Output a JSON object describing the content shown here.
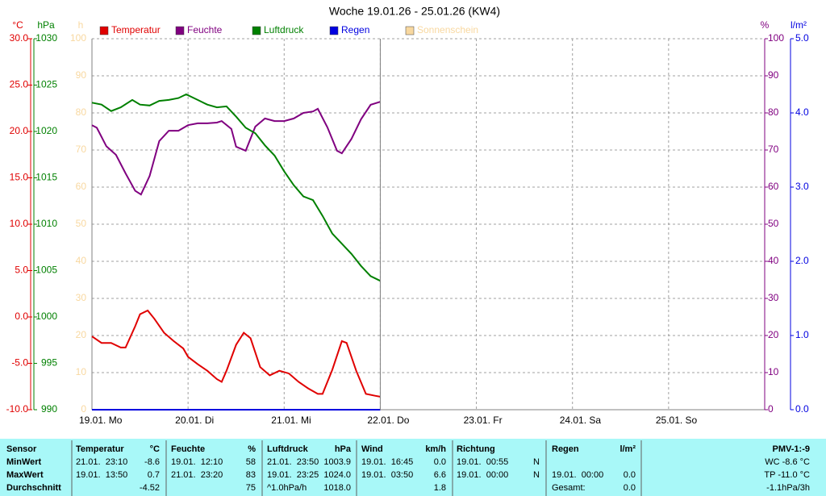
{
  "chart_data": {
    "type": "line",
    "title": "Woche 19.01.26 - 25.01.26 (KW4)",
    "xlim": [
      0,
      7
    ],
    "xticks": [
      {
        "value": 0,
        "label": "19.01. Mo"
      },
      {
        "value": 1,
        "label": "20.01. Di"
      },
      {
        "value": 2,
        "label": "21.01. Mi"
      },
      {
        "value": 3,
        "label": "22.01. Do"
      },
      {
        "value": 4,
        "label": "23.01. Fr"
      },
      {
        "value": 5,
        "label": "24.01. Sa"
      },
      {
        "value": 6,
        "label": "25.01. So"
      }
    ],
    "grid": true,
    "axes": [
      {
        "label": "°C",
        "color": "#e00000",
        "lim": [
          -10,
          30
        ],
        "ticks": [
          {
            "value": -10,
            "label": "-10.0"
          },
          {
            "value": -5,
            "label": "-5.0"
          },
          {
            "value": 0,
            "label": "0.0"
          },
          {
            "value": 5,
            "label": "5.0"
          },
          {
            "value": 10,
            "label": "10.0"
          },
          {
            "value": 15,
            "label": "15.0"
          },
          {
            "value": 20,
            "label": "20.0"
          },
          {
            "value": 25,
            "label": "25.0"
          },
          {
            "value": 30,
            "label": "30.0"
          }
        ]
      },
      {
        "label": "hPa",
        "color": "#008000",
        "lim": [
          990,
          1030
        ],
        "ticks": [
          990,
          995,
          1000,
          1005,
          1010,
          1015,
          1020,
          1025,
          1030
        ]
      },
      {
        "label": "h",
        "color": "#f8d8a0",
        "lim": [
          0,
          100
        ],
        "ticks": [
          0,
          10,
          20,
          30,
          40,
          50,
          60,
          70,
          80,
          90,
          100
        ]
      },
      {
        "label": "%",
        "color": "#800080",
        "lim": [
          0,
          100
        ],
        "ticks": [
          0,
          10,
          20,
          30,
          40,
          50,
          60,
          70,
          80,
          90,
          100
        ]
      },
      {
        "label": "l/m²",
        "color": "#0000e0",
        "lim": [
          0,
          5
        ],
        "ticks": [
          {
            "value": 0,
            "label": "0.0"
          },
          {
            "value": 1,
            "label": "1.0"
          },
          {
            "value": 2,
            "label": "2.0"
          },
          {
            "value": 3,
            "label": "3.0"
          },
          {
            "value": 4,
            "label": "4.0"
          },
          {
            "value": 5,
            "label": "5.0"
          }
        ]
      }
    ],
    "series": [
      {
        "name": "Temperatur",
        "color": "#e00000",
        "axis": 0,
        "x": [
          0,
          0.1,
          0.2,
          0.3,
          0.35,
          0.45,
          0.5,
          0.58,
          0.65,
          0.75,
          0.85,
          0.95,
          1.0,
          1.1,
          1.2,
          1.3,
          1.35,
          1.4,
          1.5,
          1.58,
          1.65,
          1.75,
          1.85,
          1.95,
          2.05,
          2.15,
          2.25,
          2.35,
          2.4,
          2.5,
          2.6,
          2.65,
          2.75,
          2.85,
          2.95,
          3.0
        ],
        "values": [
          -2.1,
          -2.8,
          -2.8,
          -3.3,
          -3.3,
          -1.0,
          0.3,
          0.7,
          -0.2,
          -1.7,
          -2.6,
          -3.4,
          -4.3,
          -5.1,
          -5.8,
          -6.7,
          -7.0,
          -5.8,
          -3.0,
          -1.7,
          -2.3,
          -5.4,
          -6.3,
          -5.8,
          -6.1,
          -7.0,
          -7.7,
          -8.3,
          -8.3,
          -5.7,
          -2.6,
          -2.8,
          -5.8,
          -8.3,
          -8.5,
          -8.6
        ]
      },
      {
        "name": "Feuchte",
        "color": "#800080",
        "axis": 3,
        "x": [
          0,
          0.05,
          0.15,
          0.25,
          0.35,
          0.45,
          0.51,
          0.6,
          0.7,
          0.8,
          0.9,
          1.0,
          1.1,
          1.2,
          1.3,
          1.35,
          1.45,
          1.5,
          1.6,
          1.7,
          1.8,
          1.9,
          2.0,
          2.1,
          2.2,
          2.3,
          2.35,
          2.45,
          2.55,
          2.6,
          2.7,
          2.8,
          2.9,
          3.0
        ],
        "values": [
          76.7,
          76,
          71,
          68.7,
          63.7,
          59,
          58,
          63,
          72.4,
          75.2,
          75.2,
          76.7,
          77.2,
          77.2,
          77.4,
          77.8,
          75.7,
          70.9,
          69.8,
          76.3,
          78.5,
          77.8,
          77.8,
          78.5,
          80,
          80.4,
          81.1,
          76.1,
          69.8,
          69.1,
          73,
          78.3,
          82.2,
          83
        ]
      },
      {
        "name": "Luftdruck",
        "color": "#008000",
        "axis": 1,
        "x": [
          0,
          0.1,
          0.2,
          0.3,
          0.42,
          0.5,
          0.6,
          0.7,
          0.8,
          0.9,
          0.98,
          1.1,
          1.2,
          1.3,
          1.4,
          1.5,
          1.6,
          1.7,
          1.8,
          1.9,
          2.0,
          2.1,
          2.2,
          2.3,
          2.4,
          2.5,
          2.6,
          2.7,
          2.8,
          2.9,
          3.0
        ],
        "values": [
          1023.1,
          1022.9,
          1022.2,
          1022.6,
          1023.4,
          1022.9,
          1022.8,
          1023.3,
          1023.4,
          1023.6,
          1024.0,
          1023.4,
          1022.9,
          1022.6,
          1022.7,
          1021.6,
          1020.4,
          1019.8,
          1018.5,
          1017.4,
          1015.7,
          1014.2,
          1013.0,
          1012.6,
          1010.9,
          1009.0,
          1007.9,
          1006.8,
          1005.5,
          1004.4,
          1003.9
        ]
      },
      {
        "name": "Regen",
        "color": "#0000e0",
        "axis": 4,
        "x": [
          0,
          3
        ],
        "values": [
          0,
          0
        ]
      },
      {
        "name": "Sonnenschein",
        "color": "#f8d8a0",
        "axis": 2
      }
    ]
  },
  "table": {
    "header": [
      "Sensor",
      "Temperatur",
      "°C",
      "Feuchte",
      "%",
      "Luftdruck",
      "hPa",
      "Wind",
      "km/h",
      "Richtung",
      null,
      "Regen",
      "l/m²",
      "PMV-1:-9"
    ],
    "rows": [
      [
        "MinWert",
        "21.01.  23:10",
        "-8.6",
        "19.01.  12:10",
        "58",
        "21.01.  23:50",
        "1003.9",
        "19.01.  16:45",
        "0.0",
        "19.01.  00:55",
        "N",
        null,
        null,
        "WC -8.6 °C"
      ],
      [
        "MaxWert",
        "19.01.  13:50",
        "0.7",
        "21.01.  23:20",
        "83",
        "19.01.  23:25",
        "1024.0",
        "19.01.  03:50",
        "6.6",
        "19.01.  00:00",
        "N",
        "19.01.  00:00",
        "0.0",
        "TP -11.0 °C"
      ],
      [
        "Durchschnitt",
        null,
        "-4.52",
        null,
        "75",
        "^1.0hPa/h",
        "1018.0",
        null,
        "1.8",
        null,
        null,
        "Gesamt:",
        "0.0",
        "-1.1hPa/3h"
      ]
    ]
  }
}
